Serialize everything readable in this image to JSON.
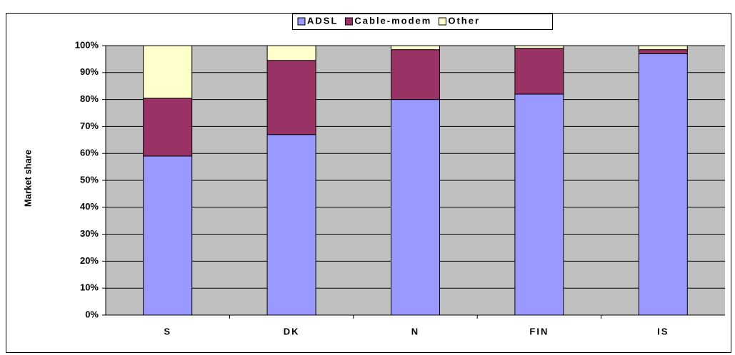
{
  "chart_data": {
    "type": "stacked_bar",
    "y_label": "Market share",
    "categories": [
      "S",
      "DK",
      "N",
      "FIN",
      "IS"
    ],
    "series": [
      {
        "name": "ADSL",
        "color": "#9999ff",
        "values": [
          59,
          67,
          80,
          82,
          97
        ]
      },
      {
        "name": "Cable-modem",
        "color": "#993366",
        "values": [
          21.5,
          27.5,
          18.5,
          17,
          1.5
        ]
      },
      {
        "name": "Other",
        "color": "#ffffcc",
        "values": [
          19.5,
          5.5,
          1.5,
          1,
          1.5
        ]
      }
    ],
    "ylim": [
      0,
      100
    ],
    "yticks": [
      {
        "value": 0,
        "label": "0%"
      },
      {
        "value": 10,
        "label": "10%"
      },
      {
        "value": 20,
        "label": "20%"
      },
      {
        "value": 30,
        "label": "30%"
      },
      {
        "value": 40,
        "label": "40%"
      },
      {
        "value": 50,
        "label": "50%"
      },
      {
        "value": 60,
        "label": "60%"
      },
      {
        "value": 70,
        "label": "70%"
      },
      {
        "value": 80,
        "label": "80%"
      },
      {
        "value": 90,
        "label": "90%"
      },
      {
        "value": 100,
        "label": "100%"
      }
    ],
    "grid": true,
    "plot_background": "#c0c0c0",
    "legend": "top"
  }
}
